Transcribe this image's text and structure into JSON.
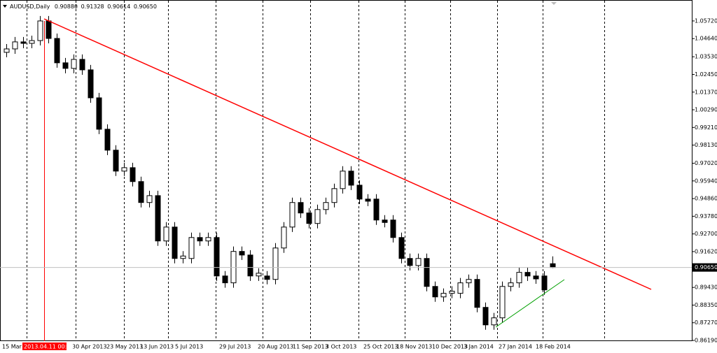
{
  "chart_data": {
    "type": "candlestick",
    "header": {
      "symbol": "AUDUSD,Daily",
      "open": "0.90880",
      "high": "0.91328",
      "low": "0.90614",
      "close": "0.90650"
    },
    "x_labels": [
      "15 Mar 2013",
      "30 Apr 2013",
      "23 May 2013",
      "13 Jun 2013",
      "5 Jul 2013",
      "29 Jul 2013",
      "20 Aug 2013",
      "11 Sep 2013",
      "3 Oct 2013",
      "25 Oct 2013",
      "18 Nov 2013",
      "10 Dec 2013",
      "3 Jan 2014",
      "27 Jan 2014",
      "18 Feb 2014"
    ],
    "crosshair_label": "2013.04.11 00:00",
    "current_price": {
      "value": 0.9065,
      "label": "0.90650"
    },
    "up_color": "#ffffff",
    "down_color": "#000000",
    "wick_color": "#000000",
    "ylim": [
      0.8619,
      1.07
    ],
    "yticks": [
      {
        "value": 1.0572,
        "label": "1.05720"
      },
      {
        "value": 1.0464,
        "label": "1.04640"
      },
      {
        "value": 1.0353,
        "label": "1.03530"
      },
      {
        "value": 1.0245,
        "label": "1.02450"
      },
      {
        "value": 1.0137,
        "label": "1.01370"
      },
      {
        "value": 1.0029,
        "label": "1.00290"
      },
      {
        "value": 0.9921,
        "label": "0.99210"
      },
      {
        "value": 0.9813,
        "label": "0.98130"
      },
      {
        "value": 0.9702,
        "label": "0.97020"
      },
      {
        "value": 0.9594,
        "label": "0.95940"
      },
      {
        "value": 0.9486,
        "label": "0.94860"
      },
      {
        "value": 0.9378,
        "label": "0.93780"
      },
      {
        "value": 0.927,
        "label": "0.92700"
      },
      {
        "value": 0.9162,
        "label": "0.91620"
      },
      {
        "value": 0.8943,
        "label": "0.89430"
      },
      {
        "value": 0.8835,
        "label": "0.88350"
      },
      {
        "value": 0.8727,
        "label": "0.87270"
      },
      {
        "value": 0.8619,
        "label": "0.86190"
      }
    ],
    "open": [
      1.038,
      1.0401,
      1.0444,
      1.0435,
      1.0452,
      1.0572,
      1.0465,
      1.0316,
      1.0282,
      1.0337,
      1.0273,
      1.0102,
      0.991,
      0.9782,
      0.9654,
      0.9675,
      0.959,
      0.9462,
      0.9504,
      0.9227,
      0.9312,
      0.912,
      0.912,
      0.9248,
      0.9227,
      0.9248,
      0.9013,
      0.8971,
      0.9163,
      0.9141,
      0.9013,
      0.9013,
      0.8992,
      0.9184,
      0.9312,
      0.9462,
      0.9398,
      0.9334,
      0.9419,
      0.9462,
      0.9547,
      0.9654,
      0.9568,
      0.9483,
      0.9483,
      0.9355,
      0.9355,
      0.9248,
      0.912,
      0.9077,
      0.912,
      0.8949,
      0.8885,
      0.8907,
      0.8907,
      0.8971,
      0.8992,
      0.8821,
      0.8714,
      0.8757,
      0.8949,
      0.8971,
      0.9035,
      0.9013,
      0.9013,
      0.9088
    ],
    "high": [
      1.0431,
      1.0474,
      1.0474,
      1.0482,
      1.0602,
      1.0602,
      1.0495,
      1.0346,
      1.0367,
      1.0367,
      1.0303,
      1.0132,
      0.994,
      0.9812,
      0.9705,
      0.9705,
      0.962,
      0.9534,
      0.9534,
      0.9342,
      0.9342,
      0.9165,
      0.9278,
      0.9278,
      0.9278,
      0.9278,
      0.9043,
      0.9193,
      0.9193,
      0.9171,
      0.906,
      0.9043,
      0.9214,
      0.9342,
      0.9492,
      0.9492,
      0.9428,
      0.9449,
      0.9492,
      0.9577,
      0.9684,
      0.9684,
      0.9598,
      0.9513,
      0.9513,
      0.9385,
      0.9385,
      0.9278,
      0.915,
      0.915,
      0.915,
      0.8979,
      0.8937,
      0.895,
      0.9001,
      0.9022,
      0.9022,
      0.8851,
      0.8787,
      0.8979,
      0.9001,
      0.9065,
      0.9065,
      0.9043,
      0.9043,
      0.9133
    ],
    "low": [
      1.035,
      1.0371,
      1.0405,
      1.0405,
      1.0422,
      1.0435,
      1.0286,
      1.0252,
      1.0252,
      1.0243,
      1.0072,
      0.988,
      0.9752,
      0.9624,
      0.9624,
      0.956,
      0.9432,
      0.9432,
      0.9197,
      0.9197,
      0.909,
      0.909,
      0.909,
      0.9197,
      0.9197,
      0.8983,
      0.8941,
      0.8941,
      0.9111,
      0.8983,
      0.8983,
      0.8962,
      0.8962,
      0.9154,
      0.9282,
      0.9368,
      0.9304,
      0.9304,
      0.9389,
      0.9432,
      0.9517,
      0.9538,
      0.9453,
      0.944,
      0.9325,
      0.931,
      0.9218,
      0.909,
      0.9047,
      0.9047,
      0.8919,
      0.8855,
      0.8855,
      0.8877,
      0.8877,
      0.8941,
      0.8791,
      0.8684,
      0.8684,
      0.8727,
      0.8919,
      0.8941,
      0.8983,
      0.8965,
      0.8898,
      0.9061
    ],
    "close": [
      1.0401,
      1.0444,
      1.0435,
      1.0452,
      1.0572,
      1.0465,
      1.0316,
      1.0282,
      1.0337,
      1.0273,
      1.0102,
      0.991,
      0.9782,
      0.9654,
      0.9675,
      0.959,
      0.9462,
      0.9504,
      0.9227,
      0.9312,
      0.912,
      0.9135,
      0.9248,
      0.9227,
      0.9248,
      0.9013,
      0.8971,
      0.9163,
      0.9141,
      0.9013,
      0.903,
      0.8992,
      0.9184,
      0.9312,
      0.9462,
      0.9398,
      0.9334,
      0.9419,
      0.9462,
      0.9547,
      0.9654,
      0.9568,
      0.9483,
      0.947,
      0.9355,
      0.934,
      0.9248,
      0.912,
      0.9077,
      0.912,
      0.8949,
      0.8885,
      0.8907,
      0.892,
      0.8971,
      0.8992,
      0.8821,
      0.8714,
      0.8757,
      0.8949,
      0.8971,
      0.9035,
      0.9013,
      0.8995,
      0.8928,
      0.9065
    ]
  }
}
